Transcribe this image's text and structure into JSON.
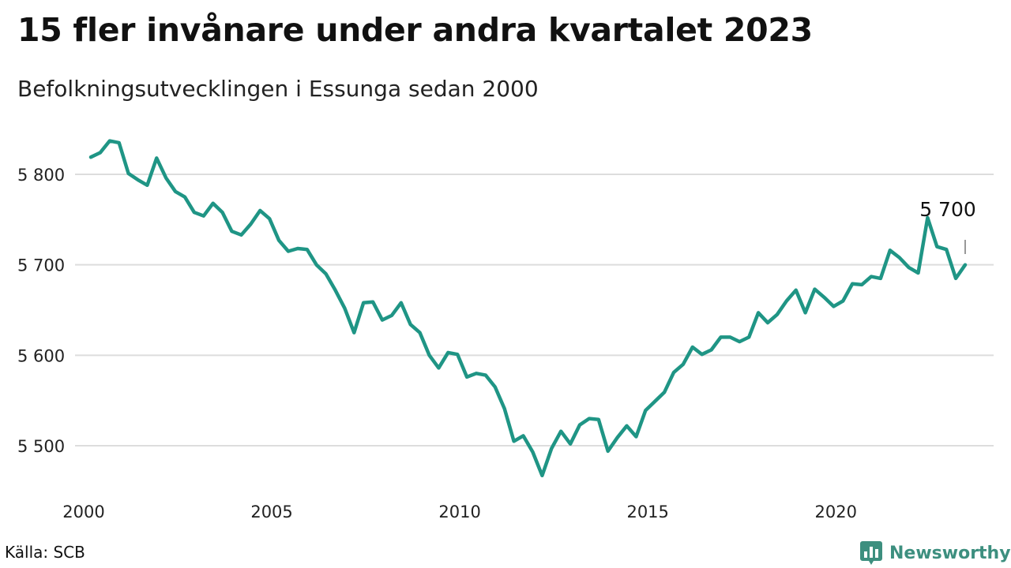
{
  "title": "15 fler invånare under andra kvartalet 2023",
  "subtitle": "Befolkningsutvecklingen i Essunga sedan 2000",
  "source": "Källa: SCB",
  "brand": {
    "name": "Newsworthy",
    "icon": "bar-chart-icon",
    "color": "#3d8f7f"
  },
  "chart_data": {
    "type": "line",
    "x_unit": "quarter",
    "ylim": [
      5450,
      5860
    ],
    "y_ticks": [
      5500,
      5600,
      5700,
      5800
    ],
    "y_tick_labels": [
      "5 500",
      "5 600",
      "5 700",
      "5 800"
    ],
    "x_ticks": [
      2000,
      2005,
      2010,
      2015,
      2020
    ],
    "x_tick_labels": [
      "2000",
      "2005",
      "2010",
      "2015",
      "2020"
    ],
    "grid": true,
    "line_color": "#1f9585",
    "end_label": "5 700",
    "series": [
      {
        "x": [
          2000.0,
          2000.25,
          2000.5,
          2000.75,
          2001.0,
          2001.25,
          2001.5,
          2001.75,
          2002.0,
          2002.25,
          2002.5,
          2002.75,
          2003.0,
          2003.25,
          2003.5,
          2003.75,
          2004.0,
          2004.25,
          2004.5,
          2004.75,
          2005.0,
          2005.25,
          2005.5,
          2005.75,
          2006.0,
          2006.25,
          2006.5,
          2006.75,
          2007.0,
          2007.25,
          2007.5,
          2007.75,
          2008.0,
          2008.25,
          2008.5,
          2008.75,
          2009.0,
          2009.25,
          2009.5,
          2009.75,
          2010.0,
          2010.25,
          2010.5,
          2010.75,
          2011.0,
          2011.25,
          2011.5,
          2011.75,
          2012.0,
          2012.25,
          2012.5,
          2012.75,
          2013.0,
          2013.25,
          2013.5,
          2013.75,
          2014.0,
          2014.25,
          2014.5,
          2014.75,
          2015.0,
          2015.25,
          2015.5,
          2015.75,
          2016.0,
          2016.25,
          2016.5,
          2016.75,
          2017.0,
          2017.25,
          2017.5,
          2017.75,
          2018.0,
          2018.25,
          2018.5,
          2018.75,
          2019.0,
          2019.25,
          2019.5,
          2019.75,
          2020.0,
          2020.25,
          2020.5,
          2020.75,
          2021.0,
          2021.25,
          2021.5,
          2021.75,
          2022.0,
          2022.25,
          2022.5,
          2022.75,
          2023.0,
          2023.25
        ],
        "values": [
          5819,
          5824,
          5837,
          5835,
          5801,
          5794,
          5788,
          5818,
          5796,
          5781,
          5775,
          5758,
          5754,
          5768,
          5758,
          5737,
          5733,
          5745,
          5760,
          5751,
          5727,
          5715,
          5718,
          5717,
          5700,
          5690,
          5672,
          5652,
          5625,
          5658,
          5659,
          5639,
          5644,
          5658,
          5634,
          5625,
          5600,
          5586,
          5603,
          5601,
          5576,
          5580,
          5578,
          5565,
          5541,
          5505,
          5511,
          5493,
          5467,
          5497,
          5516,
          5502,
          5523,
          5530,
          5529,
          5494,
          5509,
          5522,
          5510,
          5539,
          5549,
          5559,
          5581,
          5590,
          5609,
          5601,
          5606,
          5620,
          5620,
          5615,
          5620,
          5647,
          5636,
          5645,
          5660,
          5672,
          5647,
          5673,
          5664,
          5654,
          5660,
          5679,
          5678,
          5687,
          5685,
          5716,
          5708,
          5697,
          5691,
          5752,
          5720,
          5717,
          5685,
          5700
        ]
      }
    ]
  }
}
